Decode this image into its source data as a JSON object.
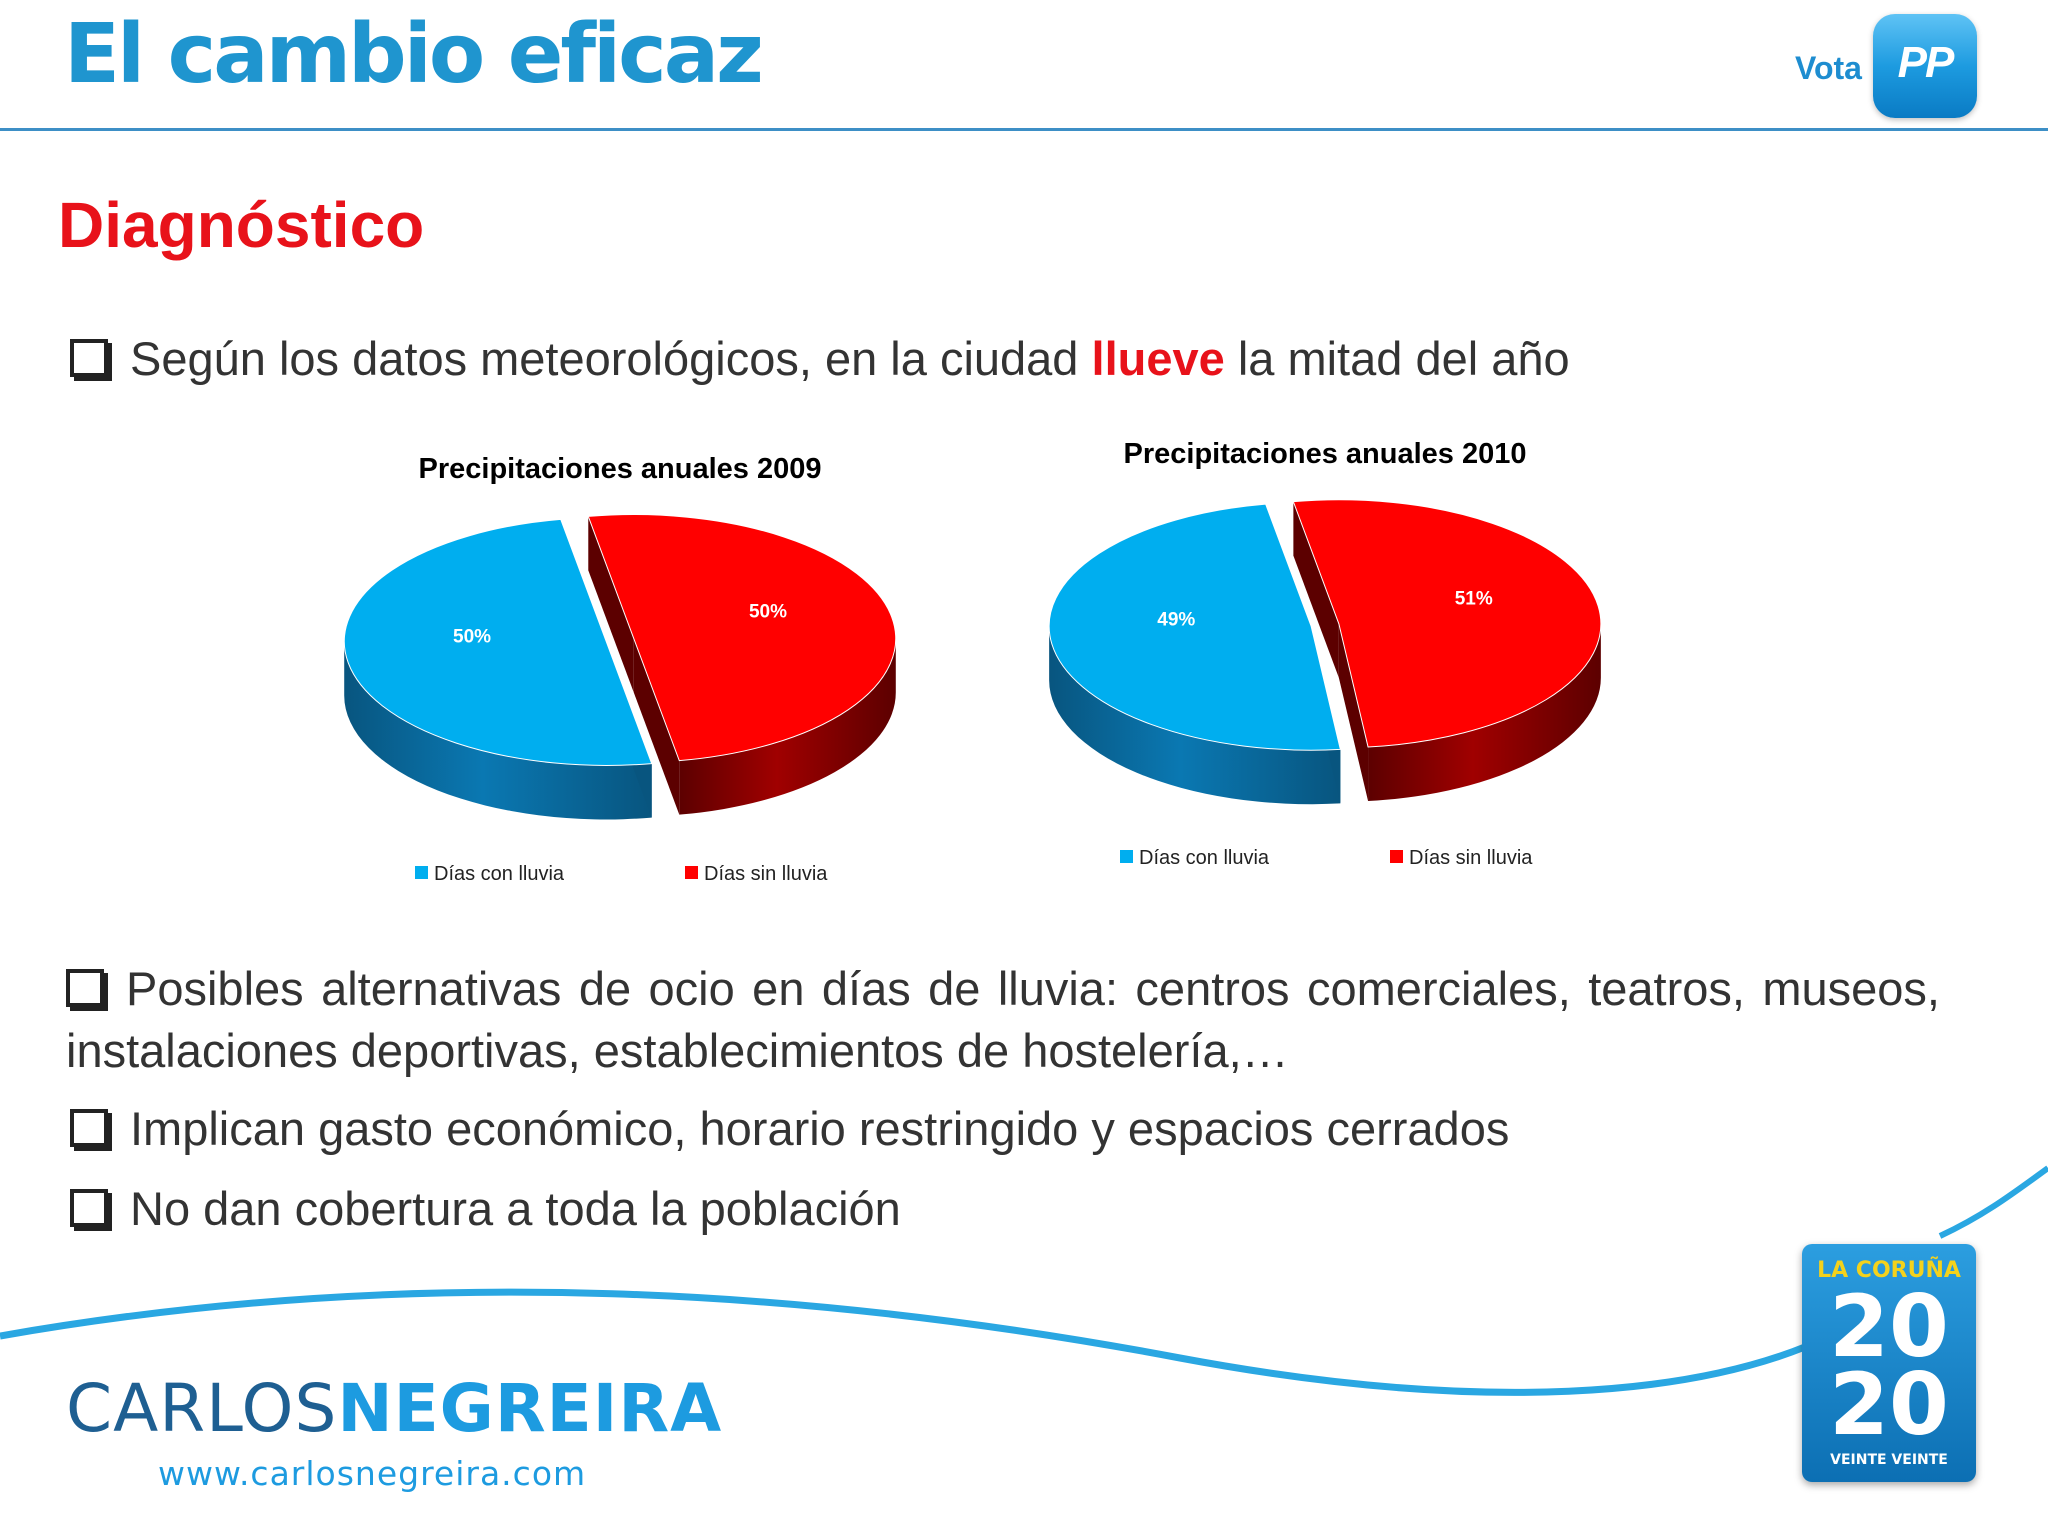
{
  "header": {
    "title": "El cambio eficaz",
    "vote_label": "Vota",
    "party_logo_text": "PP"
  },
  "section": {
    "title": "Diagnóstico"
  },
  "bullets": {
    "b1": {
      "before": "Según los datos meteorológicos, en la ciudad ",
      "highlight": "llueve",
      "after": " la mitad del año"
    },
    "b2": "Posibles alternativas de ocio en días de lluvia: centros comerciales, teatros, museos, instalaciones deportivas, establecimientos de hostelería,…",
    "b3": "Implican gasto económico, horario restringido y espacios cerrados",
    "b4": "No dan cobertura a toda la población"
  },
  "colors": {
    "rain": "#00aeef",
    "no_rain": "#ff0000",
    "accent_red": "#e8121a",
    "brand_blue": "#1f95cf"
  },
  "chart_data": [
    {
      "type": "pie",
      "title": "Precipitaciones anuales 2009",
      "categories": [
        "Días con lluvia",
        "Días sin lluvia"
      ],
      "values": [
        50,
        50
      ],
      "labels": [
        "50%",
        "50%"
      ],
      "legend": "bottom"
    },
    {
      "type": "pie",
      "title": "Precipitaciones anuales 2010",
      "categories": [
        "Días con lluvia",
        "Días sin lluvia"
      ],
      "values": [
        49,
        51
      ],
      "labels": [
        "49%",
        "51%"
      ],
      "legend": "bottom"
    }
  ],
  "footer": {
    "name_light": "CARLOS",
    "name_bold": "NEGREIRA",
    "url": "www.carlosnegreira.com",
    "badge_top": "LA CORUÑA",
    "badge_20a": "20",
    "badge_20b": "20",
    "badge_bottom": "VEINTE VEINTE"
  }
}
